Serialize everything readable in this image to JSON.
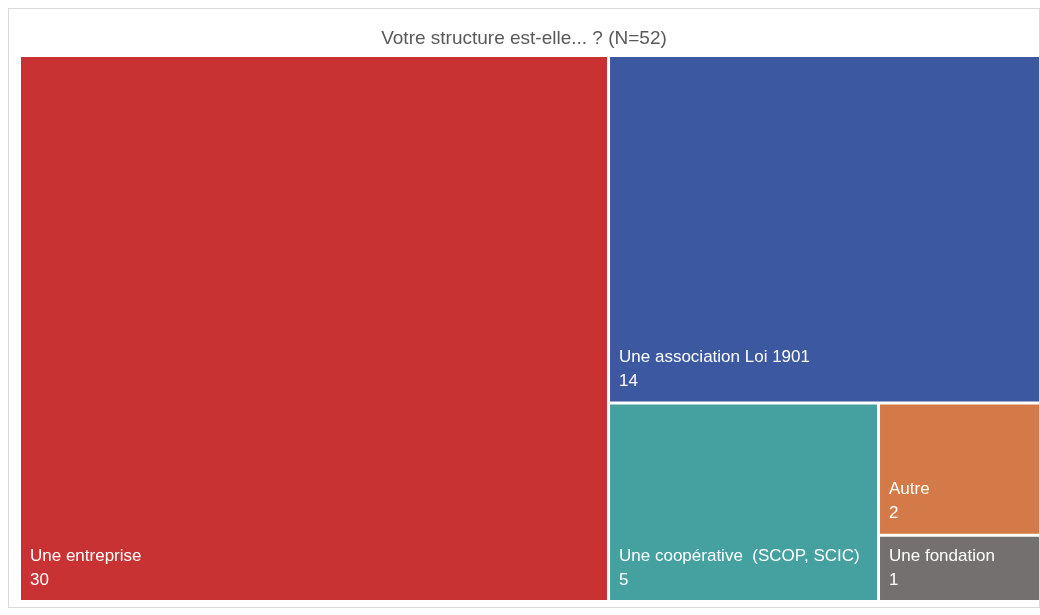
{
  "chart_data": {
    "type": "other",
    "title": "Votre structure est-elle... ? (N=52)",
    "categories": [
      "Une entreprise",
      "Une association Loi 1901",
      "Une coopérative  (SCOP, SCIC)",
      "Autre",
      "Une fondation"
    ],
    "values": [
      30,
      14,
      5,
      2,
      1
    ],
    "colors": [
      "#c83232",
      "#3c58a0",
      "#45a0a0",
      "#d47a48",
      "#757070"
    ],
    "data_labels": true
  }
}
